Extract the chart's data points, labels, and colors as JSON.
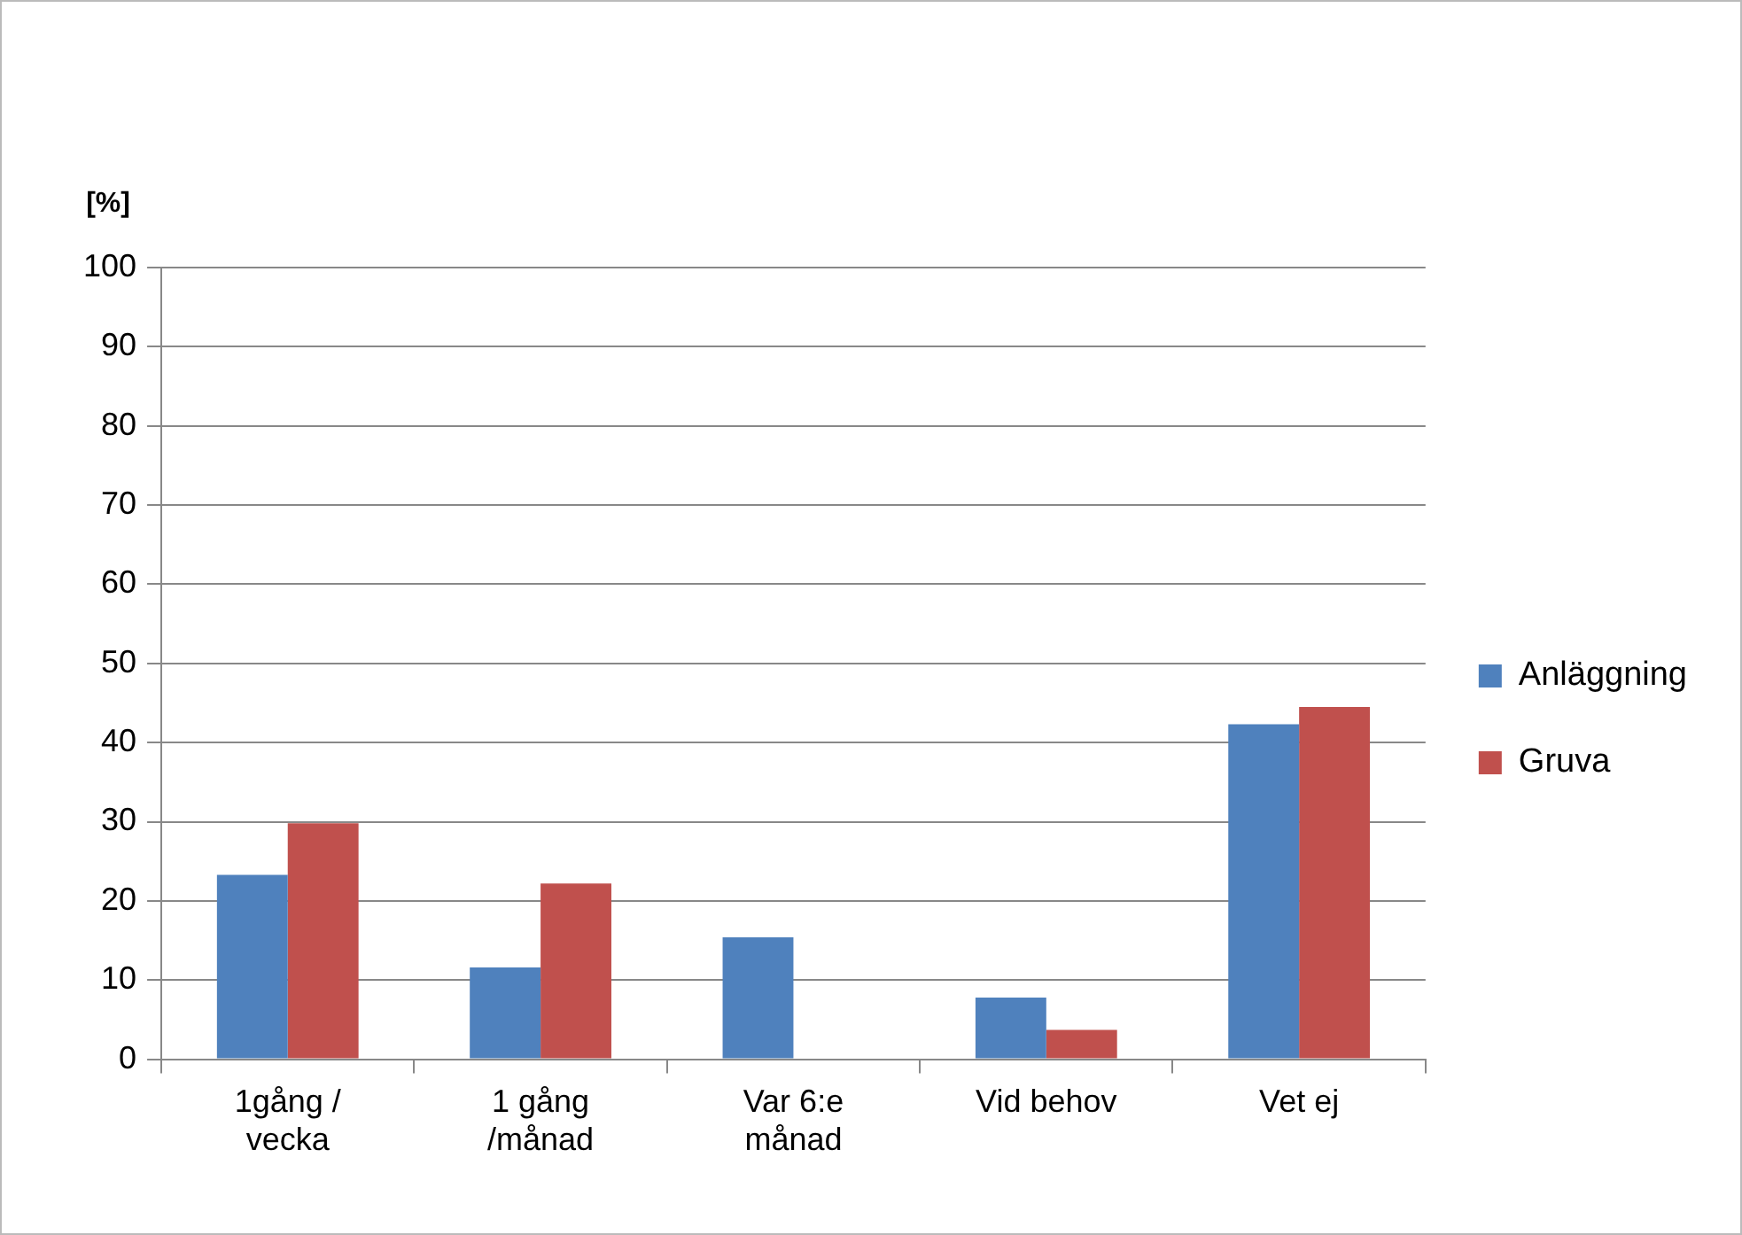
{
  "chart_data": {
    "type": "bar",
    "ylabel": "[%]",
    "categories": [
      "1gång / vecka",
      "1 gång /månad",
      "Var 6:e månad",
      "Vid behov",
      "Vet ej"
    ],
    "series": [
      {
        "name": "Anläggning",
        "color": "#4f81bd",
        "values": [
          23.3,
          11.6,
          15.4,
          7.8,
          42.3
        ]
      },
      {
        "name": "Gruva",
        "color": "#c0504d",
        "values": [
          29.8,
          22.2,
          0,
          3.7,
          44.5
        ]
      }
    ],
    "ylim": [
      0,
      100
    ],
    "yticks": [
      0,
      10,
      20,
      30,
      40,
      50,
      60,
      70,
      80,
      90,
      100
    ],
    "grid": "y",
    "legend": "right"
  }
}
